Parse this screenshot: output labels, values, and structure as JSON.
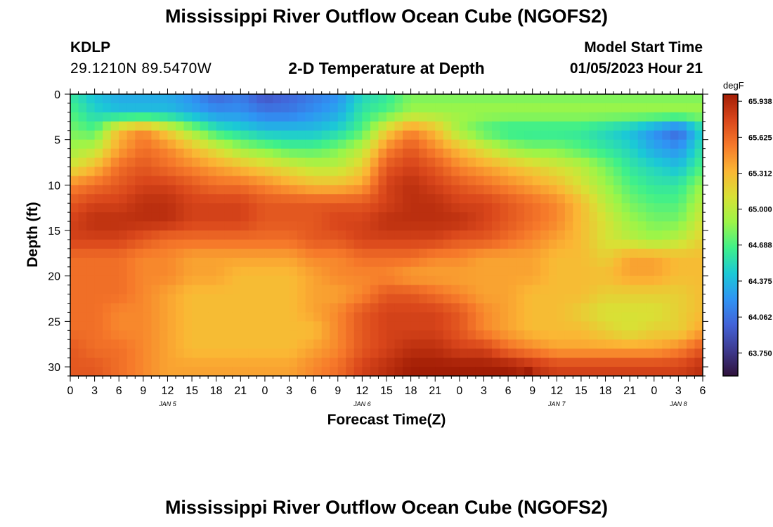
{
  "header": {
    "title": "Mississippi River Outflow Ocean Cube (NGOFS2)",
    "station": "KDLP",
    "coords": "29.1210N  89.5470W",
    "subtitle": "2-D Temperature at Depth",
    "model_start_label": "Model Start Time",
    "model_start_value": "01/05/2023 Hour 21"
  },
  "footer": {
    "title": "Mississippi River Outflow Ocean Cube (NGOFS2)"
  },
  "colors": {
    "scale": [
      "#30123b",
      "#3e3a8f",
      "#4363d8",
      "#2f94f4",
      "#1bc9d6",
      "#3ff08a",
      "#9cf548",
      "#d8e135",
      "#fbb634",
      "#f6792a",
      "#d9461b",
      "#a21d05"
    ]
  },
  "chart_data": {
    "type": "heatmap",
    "xlabel": "Forecast Time(Z)",
    "ylabel": "Depth (ft)",
    "xlim": [
      0,
      78
    ],
    "ylim": [
      31,
      0
    ],
    "x_ticks": [
      0,
      3,
      6,
      9,
      12,
      15,
      18,
      21,
      24,
      27,
      30,
      33,
      36,
      39,
      42,
      45,
      48,
      51,
      54,
      57,
      60,
      63,
      66,
      69,
      72,
      75,
      78
    ],
    "x_tick_labels": [
      "0",
      "3",
      "6",
      "9",
      "12",
      "15",
      "18",
      "21",
      "0",
      "3",
      "6",
      "9",
      "12",
      "15",
      "18",
      "21",
      "0",
      "3",
      "6",
      "9",
      "12",
      "15",
      "18",
      "21",
      "0",
      "3",
      "6"
    ],
    "y_ticks": [
      0,
      5,
      10,
      15,
      20,
      25,
      30
    ],
    "y_tick_labels": [
      "0",
      "5",
      "10",
      "15",
      "20",
      "25",
      "30"
    ],
    "date_labels": [
      {
        "x": 12,
        "label": "JAN 5"
      },
      {
        "x": 36,
        "label": "JAN 6"
      },
      {
        "x": 60,
        "label": "JAN 7"
      },
      {
        "x": 75,
        "label": "JAN 8"
      }
    ],
    "colorbar": {
      "unit": "degF",
      "min": 63.55,
      "max": 66.0,
      "ticks": [
        65.938,
        65.625,
        65.312,
        65.0,
        64.688,
        64.375,
        64.062,
        63.75
      ],
      "tick_labels": [
        "65.938",
        "65.625",
        "65.312",
        "65.000",
        "64.688",
        "64.375",
        "64.062",
        "63.750"
      ]
    },
    "grid": {
      "cols": 78,
      "rows": 31,
      "ctrl_times": [
        0,
        3,
        6,
        9,
        12,
        15,
        18,
        21,
        24,
        27,
        30,
        33,
        36,
        39,
        42,
        45,
        48,
        51,
        54,
        57,
        60,
        63,
        66,
        69,
        72,
        75,
        78
      ],
      "ctrl_depths": [
        0,
        2,
        4,
        6,
        8,
        10,
        12,
        14,
        16,
        18,
        20,
        22,
        24,
        26,
        28,
        30
      ],
      "values": [
        [
          64.6,
          64.4,
          64.3,
          64.3,
          64.3,
          64.2,
          64.0,
          64.1,
          63.9,
          64.0,
          64.1,
          64.2,
          64.5,
          64.6,
          64.8,
          64.8,
          64.8,
          64.8,
          64.8,
          64.8,
          64.8,
          64.8,
          64.8,
          64.8,
          64.8,
          64.8,
          64.8
        ],
        [
          64.7,
          64.5,
          64.4,
          64.4,
          64.4,
          64.3,
          64.2,
          64.2,
          64.1,
          64.1,
          64.2,
          64.3,
          64.6,
          64.7,
          64.9,
          64.9,
          64.9,
          64.9,
          64.9,
          64.9,
          64.9,
          64.9,
          64.9,
          64.9,
          64.9,
          64.9,
          64.9
        ],
        [
          64.8,
          64.7,
          65.3,
          65.5,
          65.2,
          64.9,
          64.6,
          64.5,
          64.4,
          64.4,
          64.4,
          64.5,
          64.7,
          65.2,
          65.5,
          65.3,
          64.9,
          64.7,
          64.6,
          64.6,
          64.6,
          64.6,
          64.5,
          64.4,
          64.2,
          64.0,
          64.5
        ],
        [
          64.9,
          65.0,
          65.4,
          65.6,
          65.5,
          65.3,
          65.1,
          64.9,
          64.8,
          64.7,
          64.7,
          64.8,
          65.0,
          65.5,
          65.7,
          65.5,
          65.3,
          65.1,
          64.9,
          64.8,
          64.8,
          64.7,
          64.6,
          64.5,
          64.3,
          64.2,
          64.6
        ],
        [
          65.1,
          65.3,
          65.6,
          65.7,
          65.6,
          65.5,
          65.4,
          65.3,
          65.2,
          65.1,
          65.0,
          65.0,
          65.2,
          65.7,
          65.8,
          65.7,
          65.5,
          65.4,
          65.3,
          65.2,
          65.1,
          65.0,
          64.8,
          64.6,
          64.5,
          64.4,
          64.7
        ],
        [
          65.5,
          65.6,
          65.7,
          65.8,
          65.8,
          65.7,
          65.6,
          65.6,
          65.5,
          65.4,
          65.3,
          65.3,
          65.4,
          65.8,
          65.9,
          65.8,
          65.7,
          65.6,
          65.5,
          65.4,
          65.3,
          65.1,
          64.9,
          64.7,
          64.6,
          64.6,
          64.9
        ],
        [
          65.7,
          65.8,
          65.8,
          65.9,
          65.9,
          65.8,
          65.8,
          65.8,
          65.7,
          65.7,
          65.7,
          65.7,
          65.7,
          65.8,
          65.9,
          65.9,
          65.8,
          65.8,
          65.7,
          65.6,
          65.5,
          65.3,
          65.0,
          64.8,
          64.7,
          64.7,
          65.0
        ],
        [
          65.8,
          65.9,
          65.9,
          65.9,
          65.9,
          65.8,
          65.8,
          65.8,
          65.7,
          65.7,
          65.7,
          65.8,
          65.8,
          65.9,
          65.9,
          65.9,
          65.9,
          65.8,
          65.7,
          65.6,
          65.5,
          65.3,
          65.1,
          64.9,
          64.8,
          64.8,
          65.1
        ],
        [
          65.8,
          65.8,
          65.8,
          65.7,
          65.6,
          65.6,
          65.6,
          65.6,
          65.6,
          65.6,
          65.7,
          65.7,
          65.8,
          65.8,
          65.8,
          65.8,
          65.7,
          65.7,
          65.6,
          65.5,
          65.4,
          65.3,
          65.1,
          65.0,
          64.9,
          65.0,
          65.2
        ],
        [
          65.6,
          65.6,
          65.6,
          65.5,
          65.5,
          65.4,
          65.4,
          65.4,
          65.4,
          65.4,
          65.5,
          65.5,
          65.6,
          65.6,
          65.6,
          65.5,
          65.5,
          65.4,
          65.4,
          65.4,
          65.3,
          65.3,
          65.2,
          65.4,
          65.4,
          65.3,
          65.3
        ],
        [
          65.6,
          65.6,
          65.6,
          65.5,
          65.5,
          65.4,
          65.4,
          65.3,
          65.3,
          65.3,
          65.4,
          65.5,
          65.5,
          65.5,
          65.4,
          65.4,
          65.4,
          65.4,
          65.4,
          65.4,
          65.3,
          65.3,
          65.3,
          65.4,
          65.4,
          65.3,
          65.3
        ],
        [
          65.6,
          65.6,
          65.6,
          65.5,
          65.4,
          65.3,
          65.3,
          65.3,
          65.3,
          65.3,
          65.4,
          65.4,
          65.5,
          65.7,
          65.7,
          65.6,
          65.5,
          65.4,
          65.4,
          65.3,
          65.3,
          65.3,
          65.2,
          65.2,
          65.2,
          65.2,
          65.3
        ],
        [
          65.6,
          65.6,
          65.5,
          65.5,
          65.4,
          65.3,
          65.3,
          65.3,
          65.3,
          65.3,
          65.4,
          65.5,
          65.7,
          65.8,
          65.8,
          65.8,
          65.7,
          65.5,
          65.4,
          65.3,
          65.3,
          65.2,
          65.1,
          65.1,
          65.1,
          65.2,
          65.3
        ],
        [
          65.6,
          65.6,
          65.5,
          65.5,
          65.4,
          65.3,
          65.3,
          65.3,
          65.3,
          65.3,
          65.3,
          65.5,
          65.7,
          65.8,
          65.8,
          65.8,
          65.7,
          65.5,
          65.4,
          65.3,
          65.3,
          65.3,
          65.2,
          65.1,
          65.2,
          65.2,
          65.4
        ],
        [
          65.7,
          65.6,
          65.6,
          65.5,
          65.4,
          65.3,
          65.3,
          65.3,
          65.3,
          65.3,
          65.4,
          65.5,
          65.7,
          65.8,
          65.9,
          65.9,
          65.8,
          65.8,
          65.6,
          65.5,
          65.4,
          65.4,
          65.4,
          65.4,
          65.4,
          65.5,
          65.7
        ],
        [
          65.7,
          65.7,
          65.6,
          65.5,
          65.4,
          65.4,
          65.4,
          65.4,
          65.4,
          65.4,
          65.5,
          65.6,
          65.8,
          65.9,
          66.0,
          66.0,
          66.0,
          66.0,
          66.0,
          65.9,
          65.8,
          65.8,
          65.8,
          65.8,
          65.8,
          65.8,
          65.9
        ]
      ],
      "hot_cell": {
        "time": 56,
        "depth": 31,
        "value": 66.0
      }
    }
  }
}
